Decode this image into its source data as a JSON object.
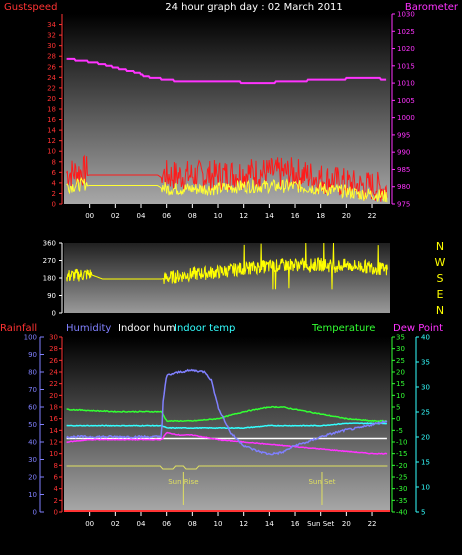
{
  "header": {
    "title": "24 hour graph day : 02 March 2011",
    "left_label": "Gustspeed",
    "right_label": "Barometer"
  },
  "colors": {
    "gust": "#ff1a1a",
    "wind": "#ffff33",
    "barometer": "#ff33ff",
    "direction": "#ffff00",
    "rainfall": "#ff3333",
    "humidity": "#8080ff",
    "indoor_hum": "#ffffff",
    "indoor_temp": "#33ffff",
    "temperature": "#33ff33",
    "dew_point": "#ff33ff",
    "sun": "#e0e060",
    "axis_left": "#ff3333",
    "axis_right": "#ff33ff",
    "axis_hum": "#8080ff",
    "axis_temp": "#33ff33",
    "axis_dew": "#33ffff"
  },
  "chart_data": [
    {
      "type": "line",
      "title": "24 hour graph day : 02 March 2011",
      "x_ticks": [
        "00",
        "02",
        "04",
        "06",
        "08",
        "10",
        "12",
        "14",
        "16",
        "18",
        "20",
        "22"
      ],
      "y_left": {
        "label": "Gustspeed",
        "min": 0,
        "max": 36,
        "ticks": [
          0,
          2,
          4,
          6,
          8,
          10,
          12,
          14,
          16,
          18,
          20,
          22,
          24,
          26,
          28,
          30,
          32,
          34
        ]
      },
      "y_right": {
        "label": "Barometer",
        "min": 975,
        "max": 1030,
        "ticks": [
          975,
          980,
          985,
          990,
          995,
          1000,
          1005,
          1010,
          1015,
          1020,
          1025,
          1030
        ]
      },
      "series": [
        {
          "name": "Gustspeed",
          "axis": "left",
          "x": [
            -1.8,
            -1.5,
            0,
            2,
            4,
            5.3,
            5.6,
            6,
            8,
            10,
            12,
            14,
            16,
            18,
            20,
            21,
            22,
            23.2
          ],
          "values": [
            5,
            5,
            5.5,
            5.5,
            5.5,
            5.5,
            5,
            4.5,
            4.5,
            4.5,
            5,
            5,
            5,
            4,
            3,
            2.5,
            2.5,
            2
          ]
        },
        {
          "name": "Windspeed",
          "axis": "left",
          "x": [
            -1.8,
            -1.5,
            0,
            2,
            4,
            5.3,
            5.6,
            6,
            8,
            10,
            12,
            14,
            16,
            18,
            20,
            21,
            22,
            23.2
          ],
          "values": [
            3,
            3,
            3.5,
            3.5,
            3.5,
            3.5,
            3,
            2.5,
            2.5,
            2.5,
            3,
            3,
            3,
            2.5,
            2,
            1.5,
            1.5,
            1
          ]
        },
        {
          "name": "Barometer",
          "axis": "right",
          "x": [
            -1.8,
            -0.5,
            1,
            2.5,
            3.8,
            4.2,
            6,
            7,
            9,
            11,
            12.5,
            14,
            15,
            16,
            18,
            22,
            23.2
          ],
          "values": [
            1017,
            1016.5,
            1015.5,
            1014,
            1013,
            1012,
            1011,
            1010.5,
            1010.5,
            1010.5,
            1010,
            1010,
            1010.5,
            1010.5,
            1011,
            1011.5,
            1011
          ]
        }
      ]
    },
    {
      "type": "line",
      "x_ticks": [],
      "y_left": {
        "min": 0,
        "max": 360,
        "ticks": [
          0,
          90,
          180,
          270,
          360
        ]
      },
      "y_right_labels": [
        "N",
        "W",
        "S",
        "E",
        "N"
      ],
      "series": [
        {
          "name": "Wind direction",
          "x": [
            -1.8,
            0,
            1,
            2,
            4,
            5.6,
            6,
            8,
            10,
            11,
            12,
            13,
            14,
            15,
            16,
            17,
            18,
            19,
            20,
            21,
            22,
            23.2
          ],
          "values": [
            190,
            200,
            175,
            175,
            175,
            175,
            180,
            200,
            210,
            220,
            230,
            235,
            240,
            245,
            250,
            245,
            250,
            240,
            245,
            240,
            235,
            220
          ]
        }
      ]
    },
    {
      "type": "line",
      "legend": [
        "Rainfall",
        "Humidity",
        "Indoor hum",
        "Indoor temp",
        "Temperature",
        "Dew Point"
      ],
      "x_ticks": [
        "00",
        "02",
        "04",
        "06",
        "08",
        "10",
        "12",
        "14",
        "16",
        "Sun Set",
        "20",
        "22"
      ],
      "y_rain": {
        "label": "Rainfall",
        "min": 0,
        "max": 30,
        "ticks": [
          0,
          2,
          4,
          6,
          8,
          10,
          12,
          14,
          16,
          18,
          20,
          22,
          24,
          26,
          28,
          30
        ]
      },
      "y_hum": {
        "label": "Humidity",
        "min": 0,
        "max": 100,
        "ticks": [
          0,
          10,
          20,
          30,
          40,
          50,
          60,
          70,
          80,
          90,
          100
        ]
      },
      "y_temp": {
        "label": "Temperature",
        "min": -40,
        "max": 35,
        "ticks": [
          -40,
          -35,
          -30,
          -25,
          -20,
          -15,
          -10,
          -5,
          0,
          5,
          10,
          15,
          20,
          25,
          30,
          35
        ]
      },
      "y_dew": {
        "label": "Dew Point",
        "min": 5,
        "max": 40,
        "ticks": [
          5,
          10,
          15,
          20,
          25,
          30,
          35,
          40
        ]
      },
      "sun_labels": {
        "rise": "Sun Rise",
        "set": "Sun Set"
      },
      "series": [
        {
          "name": "Humidity",
          "axis": "hum",
          "x": [
            -1.8,
            0,
            2,
            4,
            5.6,
            5.7,
            6,
            7,
            8,
            9,
            9.5,
            10,
            11,
            12,
            13,
            14,
            15,
            16,
            17,
            18,
            19,
            20,
            21,
            22,
            23.2
          ],
          "values": [
            43,
            43,
            43,
            43,
            43,
            62,
            78,
            80,
            81,
            80,
            75,
            60,
            45,
            38,
            35,
            33,
            34,
            38,
            40,
            43,
            45,
            47,
            48,
            50,
            52
          ]
        },
        {
          "name": "Indoor hum",
          "axis": "hum",
          "x": [
            -1.8,
            23.2
          ],
          "values": [
            42,
            42
          ]
        },
        {
          "name": "Indoor temp",
          "axis": "temp",
          "x": [
            -1.8,
            0,
            2,
            4,
            5.6,
            6,
            8,
            10,
            12,
            14,
            16,
            18,
            20,
            22,
            23.2
          ],
          "values": [
            -3,
            -3,
            -3,
            -3,
            -3,
            -4,
            -4,
            -4,
            -4,
            -3,
            -3,
            -3,
            -2,
            -2,
            -2
          ]
        },
        {
          "name": "Temperature",
          "axis": "temp",
          "x": [
            -1.8,
            0,
            2,
            4,
            5.6,
            6,
            8,
            10,
            12,
            13,
            14,
            15,
            16,
            18,
            20,
            22,
            23.2
          ],
          "values": [
            4,
            3.5,
            3,
            3,
            3,
            -1,
            -1,
            0,
            3,
            4,
            5,
            5,
            4,
            2,
            0,
            -1,
            -1
          ]
        },
        {
          "name": "Dew Point",
          "axis": "temp",
          "x": [
            -1.8,
            0,
            2,
            4,
            5.6,
            6,
            7,
            8,
            9,
            10,
            12,
            14,
            16,
            18,
            20,
            22,
            23.2
          ],
          "values": [
            -10,
            -9,
            -9,
            -9,
            -9,
            -6,
            -7,
            -7,
            -8,
            -9,
            -10,
            -11,
            -12,
            -13,
            -14,
            -15,
            -15
          ]
        }
      ]
    }
  ]
}
